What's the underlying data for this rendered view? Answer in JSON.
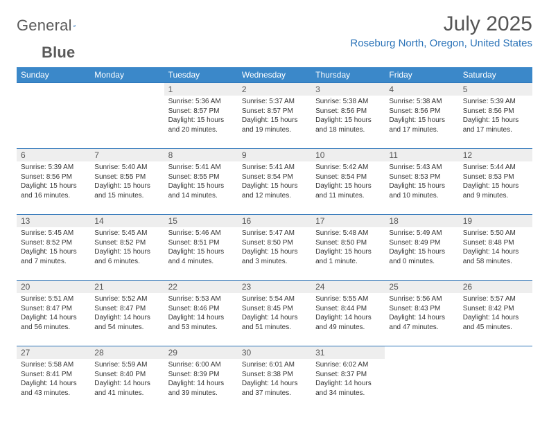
{
  "brand": {
    "part1": "General",
    "part2": "Blue"
  },
  "title": "July 2025",
  "location": "Roseburg North, Oregon, United States",
  "columns": [
    "Sunday",
    "Monday",
    "Tuesday",
    "Wednesday",
    "Thursday",
    "Friday",
    "Saturday"
  ],
  "weekday_bg": "#3b88c9",
  "weekday_fg": "#ffffff",
  "daynum_bg": "#eeeeee",
  "border_color": "#2b73b8",
  "title_color": "#555555",
  "location_color": "#2b73b8",
  "weeks": [
    [
      {
        "n": "",
        "sr": "",
        "ss": "",
        "dl1": "",
        "dl2": "",
        "empty": true
      },
      {
        "n": "",
        "sr": "",
        "ss": "",
        "dl1": "",
        "dl2": "",
        "empty": true
      },
      {
        "n": "1",
        "sr": "Sunrise: 5:36 AM",
        "ss": "Sunset: 8:57 PM",
        "dl1": "Daylight: 15 hours",
        "dl2": "and 20 minutes."
      },
      {
        "n": "2",
        "sr": "Sunrise: 5:37 AM",
        "ss": "Sunset: 8:57 PM",
        "dl1": "Daylight: 15 hours",
        "dl2": "and 19 minutes."
      },
      {
        "n": "3",
        "sr": "Sunrise: 5:38 AM",
        "ss": "Sunset: 8:56 PM",
        "dl1": "Daylight: 15 hours",
        "dl2": "and 18 minutes."
      },
      {
        "n": "4",
        "sr": "Sunrise: 5:38 AM",
        "ss": "Sunset: 8:56 PM",
        "dl1": "Daylight: 15 hours",
        "dl2": "and 17 minutes."
      },
      {
        "n": "5",
        "sr": "Sunrise: 5:39 AM",
        "ss": "Sunset: 8:56 PM",
        "dl1": "Daylight: 15 hours",
        "dl2": "and 17 minutes."
      }
    ],
    [
      {
        "n": "6",
        "sr": "Sunrise: 5:39 AM",
        "ss": "Sunset: 8:56 PM",
        "dl1": "Daylight: 15 hours",
        "dl2": "and 16 minutes."
      },
      {
        "n": "7",
        "sr": "Sunrise: 5:40 AM",
        "ss": "Sunset: 8:55 PM",
        "dl1": "Daylight: 15 hours",
        "dl2": "and 15 minutes."
      },
      {
        "n": "8",
        "sr": "Sunrise: 5:41 AM",
        "ss": "Sunset: 8:55 PM",
        "dl1": "Daylight: 15 hours",
        "dl2": "and 14 minutes."
      },
      {
        "n": "9",
        "sr": "Sunrise: 5:41 AM",
        "ss": "Sunset: 8:54 PM",
        "dl1": "Daylight: 15 hours",
        "dl2": "and 12 minutes."
      },
      {
        "n": "10",
        "sr": "Sunrise: 5:42 AM",
        "ss": "Sunset: 8:54 PM",
        "dl1": "Daylight: 15 hours",
        "dl2": "and 11 minutes."
      },
      {
        "n": "11",
        "sr": "Sunrise: 5:43 AM",
        "ss": "Sunset: 8:53 PM",
        "dl1": "Daylight: 15 hours",
        "dl2": "and 10 minutes."
      },
      {
        "n": "12",
        "sr": "Sunrise: 5:44 AM",
        "ss": "Sunset: 8:53 PM",
        "dl1": "Daylight: 15 hours",
        "dl2": "and 9 minutes."
      }
    ],
    [
      {
        "n": "13",
        "sr": "Sunrise: 5:45 AM",
        "ss": "Sunset: 8:52 PM",
        "dl1": "Daylight: 15 hours",
        "dl2": "and 7 minutes."
      },
      {
        "n": "14",
        "sr": "Sunrise: 5:45 AM",
        "ss": "Sunset: 8:52 PM",
        "dl1": "Daylight: 15 hours",
        "dl2": "and 6 minutes."
      },
      {
        "n": "15",
        "sr": "Sunrise: 5:46 AM",
        "ss": "Sunset: 8:51 PM",
        "dl1": "Daylight: 15 hours",
        "dl2": "and 4 minutes."
      },
      {
        "n": "16",
        "sr": "Sunrise: 5:47 AM",
        "ss": "Sunset: 8:50 PM",
        "dl1": "Daylight: 15 hours",
        "dl2": "and 3 minutes."
      },
      {
        "n": "17",
        "sr": "Sunrise: 5:48 AM",
        "ss": "Sunset: 8:50 PM",
        "dl1": "Daylight: 15 hours",
        "dl2": "and 1 minute."
      },
      {
        "n": "18",
        "sr": "Sunrise: 5:49 AM",
        "ss": "Sunset: 8:49 PM",
        "dl1": "Daylight: 15 hours",
        "dl2": "and 0 minutes."
      },
      {
        "n": "19",
        "sr": "Sunrise: 5:50 AM",
        "ss": "Sunset: 8:48 PM",
        "dl1": "Daylight: 14 hours",
        "dl2": "and 58 minutes."
      }
    ],
    [
      {
        "n": "20",
        "sr": "Sunrise: 5:51 AM",
        "ss": "Sunset: 8:47 PM",
        "dl1": "Daylight: 14 hours",
        "dl2": "and 56 minutes."
      },
      {
        "n": "21",
        "sr": "Sunrise: 5:52 AM",
        "ss": "Sunset: 8:47 PM",
        "dl1": "Daylight: 14 hours",
        "dl2": "and 54 minutes."
      },
      {
        "n": "22",
        "sr": "Sunrise: 5:53 AM",
        "ss": "Sunset: 8:46 PM",
        "dl1": "Daylight: 14 hours",
        "dl2": "and 53 minutes."
      },
      {
        "n": "23",
        "sr": "Sunrise: 5:54 AM",
        "ss": "Sunset: 8:45 PM",
        "dl1": "Daylight: 14 hours",
        "dl2": "and 51 minutes."
      },
      {
        "n": "24",
        "sr": "Sunrise: 5:55 AM",
        "ss": "Sunset: 8:44 PM",
        "dl1": "Daylight: 14 hours",
        "dl2": "and 49 minutes."
      },
      {
        "n": "25",
        "sr": "Sunrise: 5:56 AM",
        "ss": "Sunset: 8:43 PM",
        "dl1": "Daylight: 14 hours",
        "dl2": "and 47 minutes."
      },
      {
        "n": "26",
        "sr": "Sunrise: 5:57 AM",
        "ss": "Sunset: 8:42 PM",
        "dl1": "Daylight: 14 hours",
        "dl2": "and 45 minutes."
      }
    ],
    [
      {
        "n": "27",
        "sr": "Sunrise: 5:58 AM",
        "ss": "Sunset: 8:41 PM",
        "dl1": "Daylight: 14 hours",
        "dl2": "and 43 minutes."
      },
      {
        "n": "28",
        "sr": "Sunrise: 5:59 AM",
        "ss": "Sunset: 8:40 PM",
        "dl1": "Daylight: 14 hours",
        "dl2": "and 41 minutes."
      },
      {
        "n": "29",
        "sr": "Sunrise: 6:00 AM",
        "ss": "Sunset: 8:39 PM",
        "dl1": "Daylight: 14 hours",
        "dl2": "and 39 minutes."
      },
      {
        "n": "30",
        "sr": "Sunrise: 6:01 AM",
        "ss": "Sunset: 8:38 PM",
        "dl1": "Daylight: 14 hours",
        "dl2": "and 37 minutes."
      },
      {
        "n": "31",
        "sr": "Sunrise: 6:02 AM",
        "ss": "Sunset: 8:37 PM",
        "dl1": "Daylight: 14 hours",
        "dl2": "and 34 minutes."
      },
      {
        "n": "",
        "sr": "",
        "ss": "",
        "dl1": "",
        "dl2": "",
        "empty": true
      },
      {
        "n": "",
        "sr": "",
        "ss": "",
        "dl1": "",
        "dl2": "",
        "empty": true
      }
    ]
  ]
}
